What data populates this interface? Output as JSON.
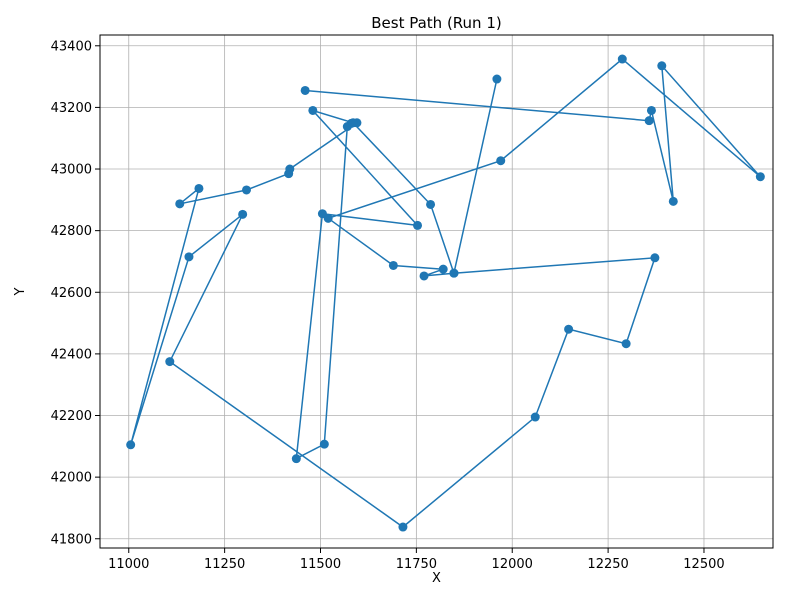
{
  "chart_data": {
    "type": "line",
    "title": "Best Path (Run 1)",
    "xlabel": "X",
    "ylabel": "Y",
    "xlim": [
      10925,
      12680
    ],
    "ylim": [
      41770,
      43435
    ],
    "grid": true,
    "marker": "circle",
    "color": "#1f77b4",
    "x_ticks": [
      11000,
      11250,
      11500,
      11750,
      12000,
      12250,
      12500
    ],
    "y_ticks": [
      41800,
      42000,
      42200,
      42400,
      42600,
      42800,
      43000,
      43200,
      43400
    ],
    "series": [
      {
        "name": "",
        "points": [
          [
            11460,
            43255
          ],
          [
            12357,
            43157
          ],
          [
            12363,
            43190
          ],
          [
            12420,
            42895
          ],
          [
            12390,
            43335
          ],
          [
            12647,
            42975
          ],
          [
            12287,
            43357
          ],
          [
            11970,
            43027
          ],
          [
            11520,
            42840
          ],
          [
            11690,
            42687
          ],
          [
            11820,
            42675
          ],
          [
            11770,
            42653
          ],
          [
            11848,
            42662
          ],
          [
            12372,
            42712
          ],
          [
            12297,
            42433
          ],
          [
            12147,
            42480
          ],
          [
            12060,
            42195
          ],
          [
            11715,
            41838
          ],
          [
            11107,
            42375
          ],
          [
            11297,
            42853
          ],
          [
            11157,
            42715
          ],
          [
            11005,
            42105
          ],
          [
            11183,
            42937
          ],
          [
            11133,
            42887
          ],
          [
            11307,
            42932
          ],
          [
            11417,
            42985
          ],
          [
            11420,
            43000
          ],
          [
            11595,
            43150
          ],
          [
            11580,
            43148
          ],
          [
            11570,
            43138
          ],
          [
            11510,
            42107
          ],
          [
            11437,
            42060
          ],
          [
            11505,
            42855
          ],
          [
            11753,
            42817
          ],
          [
            11480,
            43190
          ],
          [
            11585,
            43150
          ],
          [
            11787,
            42885
          ],
          [
            11848,
            42662
          ],
          [
            11960,
            43292
          ]
        ]
      }
    ]
  }
}
